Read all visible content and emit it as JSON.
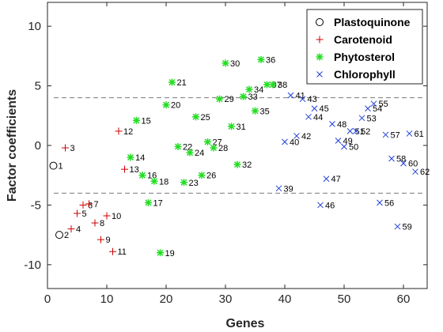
{
  "chart_data": {
    "type": "scatter",
    "xlabel": "Genes",
    "ylabel": "Factor coefficients",
    "xlim": [
      0,
      64
    ],
    "ylim": [
      -12,
      12
    ],
    "x_ticks": [
      0,
      10,
      20,
      30,
      40,
      50,
      60
    ],
    "y_ticks": [
      -10,
      -5,
      0,
      5,
      10
    ],
    "threshold_lines": [
      4,
      -4
    ],
    "legend_position": "top-right",
    "series": [
      {
        "name": "Plastoquinone",
        "marker": "circle",
        "color": "#000000",
        "points": [
          {
            "label": "1",
            "x": 1,
            "y": -1.7
          },
          {
            "label": "2",
            "x": 2,
            "y": -7.5
          }
        ]
      },
      {
        "name": "Carotenoid",
        "marker": "plus",
        "color": "#cc0000",
        "points": [
          {
            "label": "3",
            "x": 3,
            "y": -0.2
          },
          {
            "label": "4",
            "x": 4,
            "y": -7.0
          },
          {
            "label": "5",
            "x": 5,
            "y": -5.7
          },
          {
            "label": "6",
            "x": 6,
            "y": -5.0
          },
          {
            "label": "7",
            "x": 7,
            "y": -4.9
          },
          {
            "label": "8",
            "x": 8,
            "y": -6.5
          },
          {
            "label": "9",
            "x": 9,
            "y": -7.9
          },
          {
            "label": "10",
            "x": 10,
            "y": -5.9
          },
          {
            "label": "11",
            "x": 11,
            "y": -8.9
          },
          {
            "label": "12",
            "x": 12,
            "y": 1.2
          },
          {
            "label": "13",
            "x": 13,
            "y": -2.0
          }
        ]
      },
      {
        "name": "Phytosterol",
        "marker": "asterisk",
        "color": "#22dd22",
        "points": [
          {
            "label": "14",
            "x": 14,
            "y": -1.0
          },
          {
            "label": "15",
            "x": 15,
            "y": 2.1
          },
          {
            "label": "16",
            "x": 16,
            "y": -2.5
          },
          {
            "label": "17",
            "x": 17,
            "y": -4.8
          },
          {
            "label": "18",
            "x": 18,
            "y": -3.0
          },
          {
            "label": "19",
            "x": 19,
            "y": -9.0
          },
          {
            "label": "20",
            "x": 20,
            "y": 3.4
          },
          {
            "label": "21",
            "x": 21,
            "y": 5.3
          },
          {
            "label": "22",
            "x": 22,
            "y": -0.1
          },
          {
            "label": "23",
            "x": 23,
            "y": -3.1
          },
          {
            "label": "24",
            "x": 24,
            "y": -0.6
          },
          {
            "label": "25",
            "x": 25,
            "y": 2.4
          },
          {
            "label": "26",
            "x": 26,
            "y": -2.5
          },
          {
            "label": "27",
            "x": 27,
            "y": 0.3
          },
          {
            "label": "28",
            "x": 28,
            "y": -0.2
          },
          {
            "label": "29",
            "x": 29,
            "y": 3.9
          },
          {
            "label": "30",
            "x": 30,
            "y": 6.9
          },
          {
            "label": "31",
            "x": 31,
            "y": 1.6
          },
          {
            "label": "32",
            "x": 32,
            "y": -1.6
          },
          {
            "label": "33",
            "x": 33,
            "y": 4.1
          },
          {
            "label": "34",
            "x": 34,
            "y": 4.7
          },
          {
            "label": "35",
            "x": 35,
            "y": 2.9
          },
          {
            "label": "36",
            "x": 36,
            "y": 7.2
          },
          {
            "label": "37",
            "x": 37,
            "y": 5.1
          },
          {
            "label": "38",
            "x": 38,
            "y": 5.1
          }
        ]
      },
      {
        "name": "Chlorophyll",
        "marker": "x",
        "color": "#1f3fd6",
        "points": [
          {
            "label": "39",
            "x": 39,
            "y": -3.6
          },
          {
            "label": "40",
            "x": 40,
            "y": 0.3
          },
          {
            "label": "41",
            "x": 41,
            "y": 4.2
          },
          {
            "label": "42",
            "x": 42,
            "y": 0.8
          },
          {
            "label": "43",
            "x": 43,
            "y": 3.9
          },
          {
            "label": "44",
            "x": 44,
            "y": 2.4
          },
          {
            "label": "45",
            "x": 45,
            "y": 3.1
          },
          {
            "label": "46",
            "x": 46,
            "y": -5.0
          },
          {
            "label": "47",
            "x": 47,
            "y": -2.8
          },
          {
            "label": "48",
            "x": 48,
            "y": 1.8
          },
          {
            "label": "49",
            "x": 49,
            "y": 0.4
          },
          {
            "label": "50",
            "x": 50,
            "y": -0.1
          },
          {
            "label": "51",
            "x": 51,
            "y": 1.2
          },
          {
            "label": "52",
            "x": 52,
            "y": 1.2
          },
          {
            "label": "53",
            "x": 53,
            "y": 2.3
          },
          {
            "label": "54",
            "x": 54,
            "y": 3.1
          },
          {
            "label": "55",
            "x": 55,
            "y": 3.5
          },
          {
            "label": "56",
            "x": 56,
            "y": -4.8
          },
          {
            "label": "57",
            "x": 57,
            "y": 0.9
          },
          {
            "label": "58",
            "x": 58,
            "y": -1.1
          },
          {
            "label": "59",
            "x": 59,
            "y": -6.8
          },
          {
            "label": "60",
            "x": 60,
            "y": -1.5
          },
          {
            "label": "61",
            "x": 61,
            "y": 1.0
          },
          {
            "label": "62",
            "x": 62,
            "y": -2.2
          }
        ]
      }
    ]
  }
}
